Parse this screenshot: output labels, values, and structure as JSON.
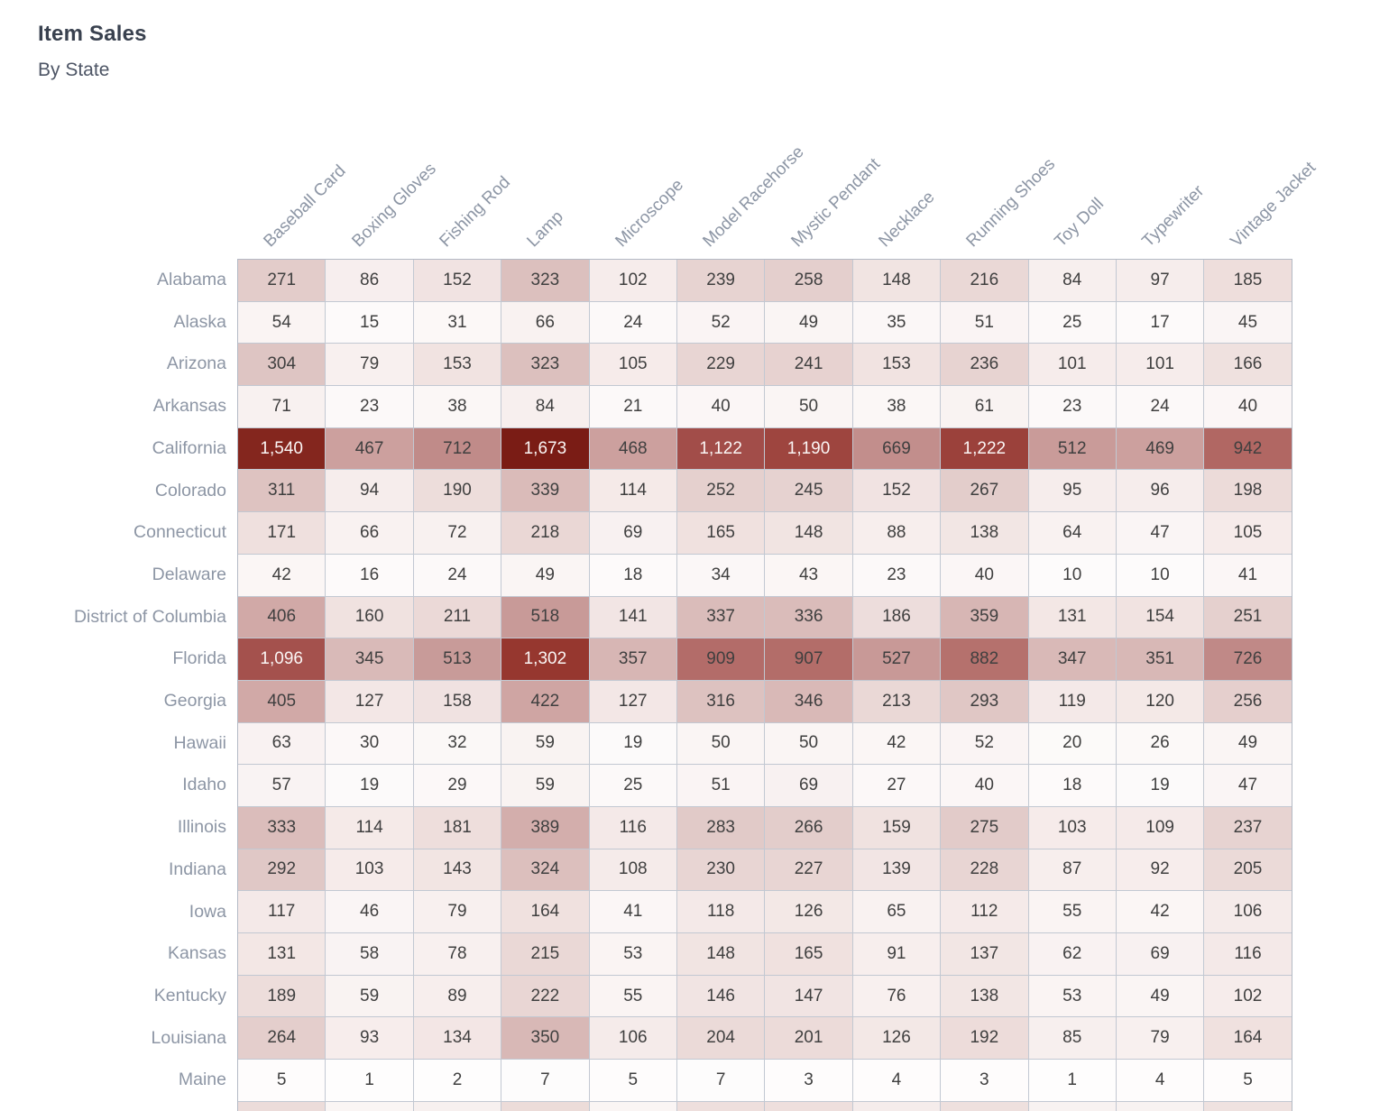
{
  "chart_data": {
    "type": "heatmap",
    "title": "Item Sales",
    "subtitle": "By State",
    "legend_position": "none",
    "columns": [
      "Baseball Card",
      "Boxing Gloves",
      "Fishing Rod",
      "Lamp",
      "Microscope",
      "Model Racehorse",
      "Mystic Pendant",
      "Necklace",
      "Running Shoes",
      "Toy Doll",
      "Typewriter",
      "Vintage Jacket"
    ],
    "rows": [
      {
        "state": "Alabama",
        "values": [
          271,
          86,
          152,
          323,
          102,
          239,
          258,
          148,
          216,
          84,
          97,
          185
        ]
      },
      {
        "state": "Alaska",
        "values": [
          54,
          15,
          31,
          66,
          24,
          52,
          49,
          35,
          51,
          25,
          17,
          45
        ]
      },
      {
        "state": "Arizona",
        "values": [
          304,
          79,
          153,
          323,
          105,
          229,
          241,
          153,
          236,
          101,
          101,
          166
        ]
      },
      {
        "state": "Arkansas",
        "values": [
          71,
          23,
          38,
          84,
          21,
          40,
          50,
          38,
          61,
          23,
          24,
          40
        ]
      },
      {
        "state": "California",
        "values": [
          1540,
          467,
          712,
          1673,
          468,
          1122,
          1190,
          669,
          1222,
          512,
          469,
          942
        ]
      },
      {
        "state": "Colorado",
        "values": [
          311,
          94,
          190,
          339,
          114,
          252,
          245,
          152,
          267,
          95,
          96,
          198
        ]
      },
      {
        "state": "Connecticut",
        "values": [
          171,
          66,
          72,
          218,
          69,
          165,
          148,
          88,
          138,
          64,
          47,
          105
        ]
      },
      {
        "state": "Delaware",
        "values": [
          42,
          16,
          24,
          49,
          18,
          34,
          43,
          23,
          40,
          10,
          10,
          41
        ]
      },
      {
        "state": "District of Columbia",
        "values": [
          406,
          160,
          211,
          518,
          141,
          337,
          336,
          186,
          359,
          131,
          154,
          251
        ]
      },
      {
        "state": "Florida",
        "values": [
          1096,
          345,
          513,
          1302,
          357,
          909,
          907,
          527,
          882,
          347,
          351,
          726
        ]
      },
      {
        "state": "Georgia",
        "values": [
          405,
          127,
          158,
          422,
          127,
          316,
          346,
          213,
          293,
          119,
          120,
          256
        ]
      },
      {
        "state": "Hawaii",
        "values": [
          63,
          30,
          32,
          59,
          19,
          50,
          50,
          42,
          52,
          20,
          26,
          49
        ]
      },
      {
        "state": "Idaho",
        "values": [
          57,
          19,
          29,
          59,
          25,
          51,
          69,
          27,
          40,
          18,
          19,
          47
        ]
      },
      {
        "state": "Illinois",
        "values": [
          333,
          114,
          181,
          389,
          116,
          283,
          266,
          159,
          275,
          103,
          109,
          237
        ]
      },
      {
        "state": "Indiana",
        "values": [
          292,
          103,
          143,
          324,
          108,
          230,
          227,
          139,
          228,
          87,
          92,
          205
        ]
      },
      {
        "state": "Iowa",
        "values": [
          117,
          46,
          79,
          164,
          41,
          118,
          126,
          65,
          112,
          55,
          42,
          106
        ]
      },
      {
        "state": "Kansas",
        "values": [
          131,
          58,
          78,
          215,
          53,
          148,
          165,
          91,
          137,
          62,
          69,
          116
        ]
      },
      {
        "state": "Kentucky",
        "values": [
          189,
          59,
          89,
          222,
          55,
          146,
          147,
          76,
          138,
          53,
          49,
          102
        ]
      },
      {
        "state": "Louisiana",
        "values": [
          264,
          93,
          134,
          350,
          106,
          204,
          201,
          126,
          192,
          85,
          79,
          164
        ]
      },
      {
        "state": "Maine",
        "values": [
          5,
          1,
          2,
          7,
          5,
          7,
          3,
          4,
          3,
          1,
          4,
          5
        ]
      }
    ],
    "value_domain": [
      0,
      1673
    ],
    "number_format": "thousands-comma",
    "color_scale": {
      "stops": [
        {
          "value": 0,
          "color": "#fefdfd"
        },
        {
          "value": 100,
          "color": "#f6eceb"
        },
        {
          "value": 200,
          "color": "#ecdbd9"
        },
        {
          "value": 300,
          "color": "#dfc6c4"
        },
        {
          "value": 420,
          "color": "#cfa5a3"
        },
        {
          "value": 520,
          "color": "#c89a98"
        },
        {
          "value": 720,
          "color": "#c08a88"
        },
        {
          "value": 950,
          "color": "#b06662"
        },
        {
          "value": 1100,
          "color": "#a4504c"
        },
        {
          "value": 1310,
          "color": "#95362e"
        },
        {
          "value": 1673,
          "color": "#7a1c15"
        }
      ],
      "white_text_above_value": 1000
    },
    "partial_next_row_colors": [
      "#ecdcda",
      "#faf5f4",
      "#f7f0ef",
      "#ecdcd9",
      "#faf5f4",
      "#eedfdd",
      "#eedfdd",
      "#f5eceb",
      "#eee0de",
      "#f8f2f1",
      "#f8f2f1",
      "#efe2e0"
    ],
    "style_colors": {
      "title": "#39414f",
      "subtitle": "#4d5565",
      "axis_labels": "#8d96a5",
      "cell_text_dark": "#3f3f3f",
      "cell_text_light": "#fbf6f5",
      "gridline": "#c2c8d2",
      "grid_border": "#b3bac5"
    }
  }
}
